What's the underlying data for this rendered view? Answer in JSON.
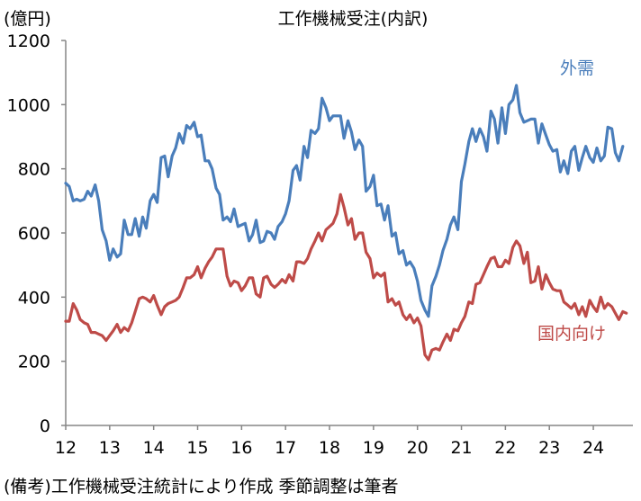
{
  "chart_data": {
    "type": "line",
    "title": "工作機械受注(内訳)",
    "unit_label": "(億円)",
    "note": "(備考)工作機械受注統計により作成 季節調整は筆者",
    "y_range": [
      0,
      1200
    ],
    "y_ticks": [
      "0",
      "200",
      "400",
      "600",
      "800",
      "1000",
      "1200"
    ],
    "x_range": [
      2012,
      2024.9
    ],
    "x_tick_labels": [
      "12",
      "13",
      "14",
      "15",
      "16",
      "17",
      "18",
      "19",
      "20",
      "21",
      "22",
      "23",
      "24"
    ],
    "grid": false,
    "colors": {
      "外需": "#4a7ebb",
      "国内向け": "#be4b48"
    },
    "series": [
      {
        "name": "外需",
        "color": "#4a7ebb",
        "points": [
          [
            2012.0,
            755
          ],
          [
            2012.08,
            745
          ],
          [
            2012.17,
            700
          ],
          [
            2012.25,
            705
          ],
          [
            2012.33,
            700
          ],
          [
            2012.42,
            705
          ],
          [
            2012.5,
            730
          ],
          [
            2012.58,
            715
          ],
          [
            2012.67,
            750
          ],
          [
            2012.75,
            700
          ],
          [
            2012.83,
            610
          ],
          [
            2012.92,
            575
          ],
          [
            2013.0,
            515
          ],
          [
            2013.08,
            550
          ],
          [
            2013.17,
            525
          ],
          [
            2013.25,
            535
          ],
          [
            2013.33,
            640
          ],
          [
            2013.42,
            595
          ],
          [
            2013.5,
            595
          ],
          [
            2013.58,
            645
          ],
          [
            2013.67,
            590
          ],
          [
            2013.75,
            650
          ],
          [
            2013.83,
            615
          ],
          [
            2013.92,
            700
          ],
          [
            2014.0,
            720
          ],
          [
            2014.08,
            695
          ],
          [
            2014.17,
            835
          ],
          [
            2014.25,
            840
          ],
          [
            2014.33,
            775
          ],
          [
            2014.42,
            840
          ],
          [
            2014.5,
            865
          ],
          [
            2014.58,
            910
          ],
          [
            2014.67,
            880
          ],
          [
            2014.75,
            935
          ],
          [
            2014.83,
            925
          ],
          [
            2014.92,
            945
          ],
          [
            2015.0,
            900
          ],
          [
            2015.08,
            905
          ],
          [
            2015.17,
            825
          ],
          [
            2015.25,
            825
          ],
          [
            2015.33,
            800
          ],
          [
            2015.42,
            740
          ],
          [
            2015.5,
            720
          ],
          [
            2015.58,
            640
          ],
          [
            2015.67,
            650
          ],
          [
            2015.75,
            635
          ],
          [
            2015.83,
            675
          ],
          [
            2015.92,
            620
          ],
          [
            2016.0,
            625
          ],
          [
            2016.08,
            630
          ],
          [
            2016.17,
            575
          ],
          [
            2016.25,
            595
          ],
          [
            2016.33,
            640
          ],
          [
            2016.42,
            570
          ],
          [
            2016.5,
            575
          ],
          [
            2016.58,
            605
          ],
          [
            2016.67,
            600
          ],
          [
            2016.75,
            580
          ],
          [
            2016.83,
            620
          ],
          [
            2016.92,
            635
          ],
          [
            2017.0,
            660
          ],
          [
            2017.08,
            700
          ],
          [
            2017.17,
            795
          ],
          [
            2017.25,
            810
          ],
          [
            2017.33,
            765
          ],
          [
            2017.42,
            870
          ],
          [
            2017.5,
            835
          ],
          [
            2017.58,
            920
          ],
          [
            2017.67,
            910
          ],
          [
            2017.75,
            925
          ],
          [
            2017.83,
            1020
          ],
          [
            2017.92,
            990
          ],
          [
            2018.0,
            950
          ],
          [
            2018.08,
            965
          ],
          [
            2018.17,
            965
          ],
          [
            2018.25,
            965
          ],
          [
            2018.33,
            895
          ],
          [
            2018.42,
            950
          ],
          [
            2018.5,
            915
          ],
          [
            2018.58,
            860
          ],
          [
            2018.67,
            890
          ],
          [
            2018.75,
            870
          ],
          [
            2018.83,
            730
          ],
          [
            2018.92,
            745
          ],
          [
            2019.0,
            780
          ],
          [
            2019.08,
            685
          ],
          [
            2019.17,
            690
          ],
          [
            2019.25,
            640
          ],
          [
            2019.33,
            685
          ],
          [
            2019.42,
            590
          ],
          [
            2019.5,
            600
          ],
          [
            2019.58,
            535
          ],
          [
            2019.67,
            545
          ],
          [
            2019.75,
            500
          ],
          [
            2019.83,
            510
          ],
          [
            2019.92,
            490
          ],
          [
            2020.0,
            450
          ],
          [
            2020.08,
            390
          ],
          [
            2020.17,
            360
          ],
          [
            2020.25,
            340
          ],
          [
            2020.33,
            435
          ],
          [
            2020.42,
            465
          ],
          [
            2020.5,
            500
          ],
          [
            2020.58,
            545
          ],
          [
            2020.67,
            580
          ],
          [
            2020.75,
            625
          ],
          [
            2020.83,
            650
          ],
          [
            2020.92,
            610
          ],
          [
            2021.0,
            760
          ],
          [
            2021.08,
            815
          ],
          [
            2021.17,
            885
          ],
          [
            2021.25,
            925
          ],
          [
            2021.33,
            885
          ],
          [
            2021.42,
            925
          ],
          [
            2021.5,
            900
          ],
          [
            2021.58,
            855
          ],
          [
            2021.67,
            980
          ],
          [
            2021.75,
            955
          ],
          [
            2021.83,
            880
          ],
          [
            2021.92,
            990
          ],
          [
            2022.0,
            910
          ],
          [
            2022.08,
            1000
          ],
          [
            2022.17,
            1015
          ],
          [
            2022.25,
            1060
          ],
          [
            2022.33,
            975
          ],
          [
            2022.42,
            945
          ],
          [
            2022.5,
            950
          ],
          [
            2022.58,
            955
          ],
          [
            2022.67,
            955
          ],
          [
            2022.75,
            880
          ],
          [
            2022.83,
            940
          ],
          [
            2022.92,
            905
          ],
          [
            2023.0,
            875
          ],
          [
            2023.08,
            855
          ],
          [
            2023.17,
            860
          ],
          [
            2023.25,
            790
          ],
          [
            2023.33,
            825
          ],
          [
            2023.42,
            785
          ],
          [
            2023.5,
            855
          ],
          [
            2023.58,
            870
          ],
          [
            2023.67,
            795
          ],
          [
            2023.75,
            835
          ],
          [
            2023.83,
            870
          ],
          [
            2023.92,
            835
          ],
          [
            2024.0,
            820
          ],
          [
            2024.08,
            865
          ],
          [
            2024.17,
            825
          ],
          [
            2024.25,
            840
          ],
          [
            2024.33,
            930
          ],
          [
            2024.42,
            925
          ],
          [
            2024.5,
            850
          ],
          [
            2024.58,
            825
          ],
          [
            2024.67,
            870
          ]
        ]
      },
      {
        "name": "国内向け",
        "color": "#be4b48",
        "points": [
          [
            2012.0,
            325
          ],
          [
            2012.08,
            325
          ],
          [
            2012.17,
            380
          ],
          [
            2012.25,
            360
          ],
          [
            2012.33,
            330
          ],
          [
            2012.42,
            320
          ],
          [
            2012.5,
            315
          ],
          [
            2012.58,
            290
          ],
          [
            2012.67,
            290
          ],
          [
            2012.75,
            285
          ],
          [
            2012.83,
            280
          ],
          [
            2012.92,
            265
          ],
          [
            2013.0,
            280
          ],
          [
            2013.08,
            295
          ],
          [
            2013.17,
            315
          ],
          [
            2013.25,
            290
          ],
          [
            2013.33,
            305
          ],
          [
            2013.42,
            295
          ],
          [
            2013.5,
            320
          ],
          [
            2013.58,
            355
          ],
          [
            2013.67,
            395
          ],
          [
            2013.75,
            400
          ],
          [
            2013.83,
            395
          ],
          [
            2013.92,
            385
          ],
          [
            2014.0,
            405
          ],
          [
            2014.08,
            375
          ],
          [
            2014.17,
            345
          ],
          [
            2014.25,
            370
          ],
          [
            2014.33,
            380
          ],
          [
            2014.42,
            385
          ],
          [
            2014.5,
            390
          ],
          [
            2014.58,
            400
          ],
          [
            2014.67,
            430
          ],
          [
            2014.75,
            460
          ],
          [
            2014.83,
            460
          ],
          [
            2014.92,
            470
          ],
          [
            2015.0,
            495
          ],
          [
            2015.08,
            460
          ],
          [
            2015.17,
            490
          ],
          [
            2015.25,
            510
          ],
          [
            2015.33,
            525
          ],
          [
            2015.42,
            550
          ],
          [
            2015.5,
            550
          ],
          [
            2015.58,
            550
          ],
          [
            2015.67,
            465
          ],
          [
            2015.75,
            435
          ],
          [
            2015.83,
            450
          ],
          [
            2015.92,
            445
          ],
          [
            2016.0,
            420
          ],
          [
            2016.08,
            435
          ],
          [
            2016.17,
            460
          ],
          [
            2016.25,
            460
          ],
          [
            2016.33,
            410
          ],
          [
            2016.42,
            400
          ],
          [
            2016.5,
            460
          ],
          [
            2016.58,
            465
          ],
          [
            2016.67,
            440
          ],
          [
            2016.75,
            430
          ],
          [
            2016.83,
            440
          ],
          [
            2016.92,
            455
          ],
          [
            2017.0,
            445
          ],
          [
            2017.08,
            470
          ],
          [
            2017.17,
            450
          ],
          [
            2017.25,
            510
          ],
          [
            2017.33,
            510
          ],
          [
            2017.42,
            505
          ],
          [
            2017.5,
            520
          ],
          [
            2017.58,
            550
          ],
          [
            2017.67,
            575
          ],
          [
            2017.75,
            600
          ],
          [
            2017.83,
            575
          ],
          [
            2017.92,
            610
          ],
          [
            2018.0,
            620
          ],
          [
            2018.08,
            630
          ],
          [
            2018.17,
            660
          ],
          [
            2018.25,
            720
          ],
          [
            2018.33,
            680
          ],
          [
            2018.42,
            625
          ],
          [
            2018.5,
            645
          ],
          [
            2018.58,
            580
          ],
          [
            2018.67,
            600
          ],
          [
            2018.75,
            600
          ],
          [
            2018.83,
            540
          ],
          [
            2018.92,
            520
          ],
          [
            2019.0,
            460
          ],
          [
            2019.08,
            475
          ],
          [
            2019.17,
            465
          ],
          [
            2019.25,
            475
          ],
          [
            2019.33,
            385
          ],
          [
            2019.42,
            395
          ],
          [
            2019.5,
            375
          ],
          [
            2019.58,
            385
          ],
          [
            2019.67,
            345
          ],
          [
            2019.75,
            330
          ],
          [
            2019.83,
            345
          ],
          [
            2019.92,
            320
          ],
          [
            2020.0,
            335
          ],
          [
            2020.08,
            310
          ],
          [
            2020.17,
            220
          ],
          [
            2020.25,
            205
          ],
          [
            2020.33,
            235
          ],
          [
            2020.42,
            240
          ],
          [
            2020.5,
            235
          ],
          [
            2020.58,
            260
          ],
          [
            2020.67,
            285
          ],
          [
            2020.75,
            265
          ],
          [
            2020.83,
            300
          ],
          [
            2020.92,
            295
          ],
          [
            2021.0,
            320
          ],
          [
            2021.08,
            340
          ],
          [
            2021.17,
            385
          ],
          [
            2021.25,
            380
          ],
          [
            2021.33,
            440
          ],
          [
            2021.42,
            445
          ],
          [
            2021.5,
            470
          ],
          [
            2021.58,
            495
          ],
          [
            2021.67,
            520
          ],
          [
            2021.75,
            525
          ],
          [
            2021.83,
            495
          ],
          [
            2021.92,
            495
          ],
          [
            2022.0,
            515
          ],
          [
            2022.08,
            505
          ],
          [
            2022.17,
            555
          ],
          [
            2022.25,
            575
          ],
          [
            2022.33,
            560
          ],
          [
            2022.42,
            505
          ],
          [
            2022.5,
            540
          ],
          [
            2022.58,
            445
          ],
          [
            2022.67,
            450
          ],
          [
            2022.75,
            495
          ],
          [
            2022.83,
            425
          ],
          [
            2022.92,
            470
          ],
          [
            2023.0,
            445
          ],
          [
            2023.08,
            425
          ],
          [
            2023.17,
            420
          ],
          [
            2023.25,
            420
          ],
          [
            2023.33,
            385
          ],
          [
            2023.42,
            375
          ],
          [
            2023.5,
            365
          ],
          [
            2023.58,
            380
          ],
          [
            2023.67,
            345
          ],
          [
            2023.75,
            370
          ],
          [
            2023.83,
            340
          ],
          [
            2023.92,
            390
          ],
          [
            2024.0,
            370
          ],
          [
            2024.08,
            355
          ],
          [
            2024.17,
            400
          ],
          [
            2024.25,
            365
          ],
          [
            2024.33,
            380
          ],
          [
            2024.42,
            370
          ],
          [
            2024.5,
            350
          ],
          [
            2024.58,
            330
          ],
          [
            2024.67,
            355
          ],
          [
            2024.75,
            350
          ]
        ]
      }
    ]
  }
}
